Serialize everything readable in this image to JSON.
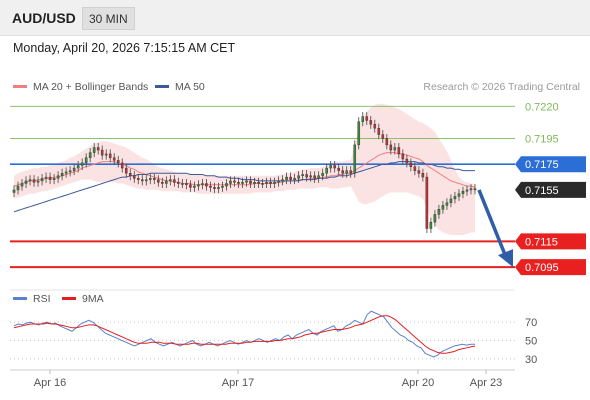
{
  "header": {
    "symbol": "AUD/USD",
    "timeframe": "30 MIN"
  },
  "datetime": "Monday, April 20, 2026 7:15:15 AM CET",
  "legend": {
    "ma20_bb": "MA 20 + Bollinger Bands",
    "ma50": "MA 50",
    "credit": "Research © 2026 Trading Central"
  },
  "rsi_legend": {
    "rsi": "RSI",
    "ma9": "9MA"
  },
  "colors": {
    "resistance": "#2b6fd6",
    "support": "#e82020",
    "green": "#7fb857",
    "ma20": "#f08080",
    "ma50": "#3a5a9a",
    "band": "#fadada",
    "arrow": "#2e5ea8",
    "up": "#3a8a3a",
    "down": "#c03030"
  },
  "chart_data": [
    {
      "type": "candlestick",
      "x_ticks": [
        "Apr 16",
        "Apr 17",
        "Apr 20",
        "Apr 23"
      ],
      "ylim": [
        0.7085,
        0.7228
      ],
      "levels": [
        {
          "value": 0.722,
          "label": "0.7220",
          "kind": "green"
        },
        {
          "value": 0.7195,
          "label": "0.7195",
          "kind": "green"
        },
        {
          "value": 0.7175,
          "label": "0.7175",
          "kind": "resistance"
        },
        {
          "value": 0.7155,
          "label": "0.7155",
          "kind": "current"
        },
        {
          "value": 0.7115,
          "label": "0.7115",
          "kind": "support"
        },
        {
          "value": 0.7095,
          "label": "0.7095",
          "kind": "support"
        }
      ],
      "close": [
        0.7155,
        0.7158,
        0.716,
        0.7162,
        0.7163,
        0.7161,
        0.7162,
        0.7164,
        0.7165,
        0.7163,
        0.7164,
        0.7166,
        0.7168,
        0.7169,
        0.717,
        0.7172,
        0.7174,
        0.7176,
        0.718,
        0.7184,
        0.7188,
        0.7186,
        0.7182,
        0.7183,
        0.718,
        0.7178,
        0.7176,
        0.7172,
        0.7168,
        0.7166,
        0.7164,
        0.7163,
        0.7162,
        0.7163,
        0.7164,
        0.7163,
        0.7161,
        0.716,
        0.7162,
        0.7163,
        0.7161,
        0.716,
        0.716,
        0.7159,
        0.7157,
        0.7158,
        0.7159,
        0.716,
        0.7158,
        0.7157,
        0.7156,
        0.7157,
        0.7158,
        0.716,
        0.7162,
        0.7161,
        0.716,
        0.7161,
        0.7162,
        0.716,
        0.7161,
        0.716,
        0.716,
        0.7161,
        0.716,
        0.7161,
        0.7162,
        0.7163,
        0.7165,
        0.7163,
        0.7164,
        0.7166,
        0.7167,
        0.7165,
        0.7166,
        0.7164,
        0.7166,
        0.7168,
        0.7172,
        0.7174,
        0.7172,
        0.717,
        0.7168,
        0.717,
        0.7168,
        0.719,
        0.7208,
        0.7212,
        0.7209,
        0.7206,
        0.7203,
        0.7198,
        0.7195,
        0.719,
        0.7186,
        0.7188,
        0.7183,
        0.7179,
        0.7176,
        0.7173,
        0.717,
        0.7168,
        0.7165,
        0.7125,
        0.713,
        0.7136,
        0.714,
        0.7143,
        0.7145,
        0.7148,
        0.715,
        0.7152,
        0.7154,
        0.7155,
        0.7156,
        0.7155
      ],
      "ma20": [
        0.7158,
        0.7159,
        0.716,
        0.7161,
        0.7162,
        0.7162,
        0.7163,
        0.7163,
        0.7164,
        0.7164,
        0.7165,
        0.7165,
        0.7166,
        0.7167,
        0.7168,
        0.7169,
        0.717,
        0.7172,
        0.7173,
        0.7174,
        0.7175,
        0.7176,
        0.7177,
        0.7177,
        0.7177,
        0.7177,
        0.7176,
        0.7175,
        0.7174,
        0.7172,
        0.7171,
        0.7169,
        0.7168,
        0.7167,
        0.7166,
        0.7165,
        0.7164,
        0.7163,
        0.7162,
        0.7162,
        0.7161,
        0.7161,
        0.716,
        0.716,
        0.716,
        0.7159,
        0.7159,
        0.7159,
        0.7159,
        0.7159,
        0.7159,
        0.7159,
        0.7159,
        0.7159,
        0.7159,
        0.7159,
        0.7159,
        0.7159,
        0.7159,
        0.7159,
        0.716,
        0.716,
        0.716,
        0.716,
        0.716,
        0.716,
        0.7161,
        0.7161,
        0.7162,
        0.7162,
        0.7162,
        0.7163,
        0.7163,
        0.7163,
        0.7164,
        0.7164,
        0.7164,
        0.7165,
        0.7165,
        0.7166,
        0.7166,
        0.7167,
        0.7167,
        0.7168,
        0.7168,
        0.717,
        0.7172,
        0.7174,
        0.7176,
        0.7178,
        0.718,
        0.7182,
        0.7183,
        0.7184,
        0.7184,
        0.7184,
        0.7183,
        0.7183,
        0.7182,
        0.7181,
        0.718,
        0.7179,
        0.7177,
        0.7174,
        0.7172,
        0.717,
        0.7168,
        0.7166,
        0.7164,
        0.7162,
        0.7161,
        0.716,
        0.7159,
        0.7158,
        0.7158,
        0.7157
      ],
      "bb_upper": [
        0.7166,
        0.7168,
        0.7169,
        0.717,
        0.7171,
        0.7172,
        0.7172,
        0.7173,
        0.7173,
        0.7174,
        0.7175,
        0.7176,
        0.7177,
        0.7178,
        0.718,
        0.7181,
        0.7183,
        0.7185,
        0.7187,
        0.7189,
        0.7191,
        0.7192,
        0.7193,
        0.7193,
        0.7192,
        0.7191,
        0.719,
        0.7189,
        0.7188,
        0.7186,
        0.7184,
        0.7182,
        0.718,
        0.7179,
        0.7177,
        0.7175,
        0.7173,
        0.7172,
        0.7171,
        0.717,
        0.7169,
        0.7168,
        0.7168,
        0.7168,
        0.7167,
        0.7167,
        0.7167,
        0.7167,
        0.7167,
        0.7166,
        0.7166,
        0.7166,
        0.7166,
        0.7166,
        0.7166,
        0.7166,
        0.7166,
        0.7166,
        0.7166,
        0.7166,
        0.7166,
        0.7166,
        0.7166,
        0.7166,
        0.7166,
        0.7166,
        0.7167,
        0.7167,
        0.7168,
        0.7168,
        0.7169,
        0.717,
        0.7171,
        0.7171,
        0.7172,
        0.7172,
        0.7172,
        0.7173,
        0.7174,
        0.7176,
        0.7177,
        0.7177,
        0.7177,
        0.7178,
        0.7178,
        0.719,
        0.7205,
        0.7212,
        0.7216,
        0.7219,
        0.7221,
        0.7222,
        0.7222,
        0.7221,
        0.722,
        0.7219,
        0.7218,
        0.7216,
        0.7214,
        0.7212,
        0.721,
        0.7208,
        0.7207,
        0.7205,
        0.7203,
        0.72,
        0.7195,
        0.719,
        0.7185,
        0.7178,
        0.7171,
        0.7165,
        0.7162,
        0.7161,
        0.716,
        0.716
      ],
      "bb_lower": [
        0.7148,
        0.7149,
        0.715,
        0.7151,
        0.7152,
        0.7152,
        0.7153,
        0.7154,
        0.7154,
        0.7155,
        0.7156,
        0.7157,
        0.7158,
        0.7159,
        0.716,
        0.7161,
        0.7162,
        0.7163,
        0.7163,
        0.7163,
        0.7162,
        0.7161,
        0.7161,
        0.7161,
        0.7161,
        0.7161,
        0.716,
        0.716,
        0.7159,
        0.7158,
        0.7157,
        0.7156,
        0.7156,
        0.7155,
        0.7155,
        0.7155,
        0.7155,
        0.7154,
        0.7154,
        0.7154,
        0.7154,
        0.7154,
        0.7153,
        0.7153,
        0.7153,
        0.7153,
        0.7152,
        0.7152,
        0.7152,
        0.7152,
        0.7152,
        0.7152,
        0.7152,
        0.7152,
        0.7152,
        0.7152,
        0.7152,
        0.7152,
        0.7152,
        0.7152,
        0.7153,
        0.7153,
        0.7153,
        0.7153,
        0.7153,
        0.7154,
        0.7154,
        0.7154,
        0.7155,
        0.7155,
        0.7155,
        0.7156,
        0.7156,
        0.7156,
        0.7156,
        0.7156,
        0.7157,
        0.7157,
        0.7157,
        0.7156,
        0.7156,
        0.7156,
        0.7157,
        0.7157,
        0.7158,
        0.7152,
        0.7146,
        0.7144,
        0.7144,
        0.7145,
        0.7146,
        0.7148,
        0.715,
        0.7152,
        0.7153,
        0.7153,
        0.7153,
        0.7153,
        0.7153,
        0.7152,
        0.7151,
        0.715,
        0.7148,
        0.714,
        0.7133,
        0.7128,
        0.7124,
        0.7122,
        0.7121,
        0.712,
        0.712,
        0.712,
        0.712,
        0.7121,
        0.7122,
        0.7122
      ],
      "ma50": [
        0.7138,
        0.7139,
        0.714,
        0.7141,
        0.7142,
        0.7143,
        0.7144,
        0.7145,
        0.7146,
        0.7147,
        0.7148,
        0.7149,
        0.715,
        0.7151,
        0.7152,
        0.7153,
        0.7154,
        0.7155,
        0.7156,
        0.7157,
        0.7158,
        0.7159,
        0.716,
        0.7161,
        0.7162,
        0.7163,
        0.7164,
        0.7165,
        0.7165,
        0.7166,
        0.7166,
        0.7167,
        0.7167,
        0.7167,
        0.7168,
        0.7168,
        0.7168,
        0.7168,
        0.7168,
        0.7168,
        0.7168,
        0.7168,
        0.7168,
        0.7168,
        0.7167,
        0.7167,
        0.7167,
        0.7167,
        0.7166,
        0.7166,
        0.7166,
        0.7165,
        0.7165,
        0.7165,
        0.7164,
        0.7164,
        0.7164,
        0.7163,
        0.7163,
        0.7163,
        0.7163,
        0.7162,
        0.7162,
        0.7162,
        0.7162,
        0.7162,
        0.7162,
        0.7162,
        0.7162,
        0.7162,
        0.7162,
        0.7162,
        0.7163,
        0.7163,
        0.7163,
        0.7163,
        0.7164,
        0.7164,
        0.7164,
        0.7165,
        0.7165,
        0.7166,
        0.7166,
        0.7166,
        0.7167,
        0.7168,
        0.7169,
        0.717,
        0.7171,
        0.7172,
        0.7173,
        0.7174,
        0.7175,
        0.7175,
        0.7176,
        0.7176,
        0.7177,
        0.7177,
        0.7177,
        0.7177,
        0.7177,
        0.7176,
        0.7176,
        0.7175,
        0.7175,
        0.7174,
        0.7173,
        0.7173,
        0.7172,
        0.7172,
        0.7171,
        0.7171,
        0.717,
        0.717,
        0.717,
        0.717
      ]
    },
    {
      "type": "line",
      "name": "RSI",
      "y_ticks": [
        70,
        50,
        30
      ],
      "ylim": [
        20,
        80
      ],
      "rsi": [
        66,
        68,
        67,
        69,
        70,
        68,
        67,
        69,
        70,
        68,
        69,
        66,
        64,
        62,
        60,
        64,
        68,
        70,
        72,
        70,
        66,
        62,
        58,
        56,
        54,
        52,
        50,
        48,
        46,
        44,
        46,
        48,
        50,
        52,
        48,
        46,
        44,
        46,
        48,
        46,
        44,
        46,
        48,
        50,
        46,
        44,
        46,
        48,
        46,
        44,
        46,
        48,
        50,
        48,
        46,
        48,
        50,
        48,
        50,
        52,
        50,
        48,
        50,
        52,
        50,
        54,
        56,
        52,
        56,
        58,
        60,
        62,
        58,
        56,
        60,
        62,
        64,
        66,
        60,
        62,
        66,
        68,
        72,
        70,
        68,
        78,
        82,
        80,
        78,
        76,
        70,
        64,
        60,
        56,
        54,
        50,
        48,
        44,
        42,
        36,
        34,
        32,
        34,
        38,
        40,
        42,
        44,
        45,
        46,
        45,
        46,
        46
      ],
      "ma9": [
        64,
        65,
        66,
        67,
        68,
        68,
        68,
        68,
        69,
        68,
        68,
        67,
        66,
        65,
        64,
        64,
        65,
        66,
        67,
        67,
        66,
        64,
        62,
        60,
        58,
        56,
        54,
        52,
        50,
        48,
        47,
        47,
        47,
        48,
        48,
        48,
        47,
        47,
        47,
        46,
        46,
        46,
        46,
        47,
        47,
        46,
        46,
        46,
        46,
        46,
        46,
        46,
        47,
        47,
        47,
        47,
        48,
        48,
        49,
        49,
        49,
        49,
        49,
        50,
        50,
        51,
        52,
        52,
        53,
        54,
        56,
        57,
        58,
        58,
        59,
        60,
        61,
        62,
        62,
        62,
        63,
        64,
        66,
        67,
        68,
        70,
        72,
        74,
        76,
        77,
        77,
        75,
        72,
        68,
        64,
        60,
        56,
        52,
        48,
        44,
        41,
        39,
        37,
        36,
        36,
        37,
        38,
        40,
        41,
        42,
        43,
        44
      ]
    }
  ]
}
